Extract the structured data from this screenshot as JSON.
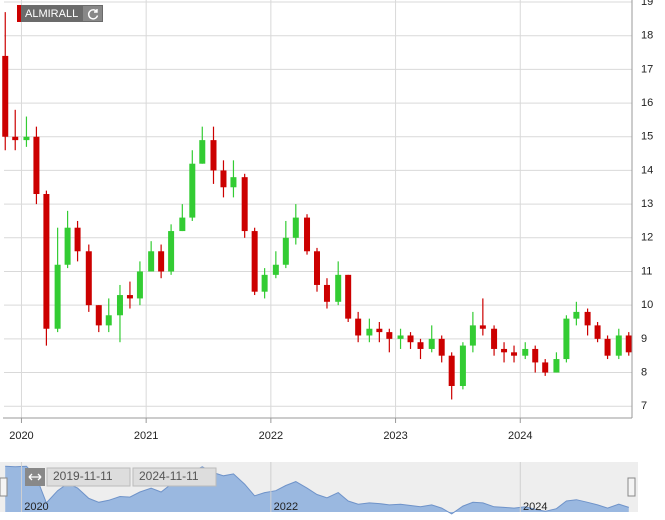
{
  "chart_data": {
    "type": "candlestick",
    "title": "ALMIRALL",
    "x": [
      2019.87,
      2019.95,
      2020.04,
      2020.12,
      2020.2,
      2020.29,
      2020.37,
      2020.45,
      2020.54,
      2020.62,
      2020.7,
      2020.79,
      2020.87,
      2020.95,
      2021.04,
      2021.12,
      2021.2,
      2021.29,
      2021.37,
      2021.45,
      2021.54,
      2021.62,
      2021.7,
      2021.79,
      2021.87,
      2021.95,
      2022.04,
      2022.12,
      2022.2,
      2022.29,
      2022.37,
      2022.45,
      2022.54,
      2022.62,
      2022.7,
      2022.79,
      2022.87,
      2022.95,
      2023.04,
      2023.12,
      2023.2,
      2023.29,
      2023.37,
      2023.45,
      2023.54,
      2023.62,
      2023.7,
      2023.79,
      2023.87,
      2023.95,
      2024.04,
      2024.12,
      2024.2,
      2024.29,
      2024.37,
      2024.45,
      2024.54,
      2024.62,
      2024.7,
      2024.79,
      2024.87
    ],
    "open": [
      17.4,
      15.0,
      14.9,
      15.0,
      13.3,
      9.3,
      11.2,
      12.3,
      11.6,
      10.0,
      9.4,
      9.7,
      10.3,
      10.2,
      11.0,
      11.6,
      11.0,
      12.2,
      12.6,
      14.2,
      14.9,
      14.0,
      13.5,
      13.8,
      12.2,
      10.4,
      10.9,
      11.2,
      12.0,
      12.6,
      11.6,
      10.6,
      10.1,
      10.9,
      9.6,
      9.1,
      9.3,
      9.2,
      9.0,
      9.1,
      8.9,
      8.7,
      9.0,
      8.5,
      7.6,
      8.8,
      9.4,
      9.3,
      8.7,
      8.6,
      8.5,
      8.7,
      8.3,
      8.0,
      8.4,
      9.6,
      9.8,
      9.4,
      9.0,
      8.5,
      9.1
    ],
    "high": [
      18.7,
      15.8,
      15.6,
      15.3,
      13.4,
      12.3,
      12.8,
      12.5,
      11.8,
      10.0,
      10.2,
      10.6,
      10.7,
      11.3,
      11.9,
      11.8,
      12.4,
      13.0,
      14.6,
      15.3,
      15.3,
      14.3,
      14.3,
      13.9,
      12.3,
      11.1,
      11.6,
      12.5,
      13.0,
      12.7,
      11.7,
      10.8,
      11.3,
      10.9,
      9.8,
      9.6,
      9.5,
      9.3,
      9.3,
      9.2,
      9.0,
      9.4,
      9.1,
      8.6,
      8.9,
      9.8,
      10.2,
      9.4,
      8.9,
      8.8,
      8.9,
      8.8,
      8.4,
      8.6,
      9.7,
      10.1,
      9.9,
      9.5,
      9.1,
      9.3,
      9.2
    ],
    "low": [
      14.6,
      14.6,
      14.7,
      13.0,
      8.8,
      9.2,
      11.1,
      11.3,
      9.8,
      9.2,
      9.2,
      8.9,
      9.9,
      10.0,
      11.0,
      10.8,
      10.9,
      12.2,
      12.5,
      14.2,
      13.6,
      13.2,
      13.2,
      12.0,
      10.3,
      10.2,
      10.8,
      11.1,
      11.8,
      11.5,
      10.4,
      9.9,
      10.0,
      9.5,
      8.9,
      8.9,
      8.9,
      8.6,
      8.7,
      8.7,
      8.4,
      8.6,
      8.3,
      7.2,
      7.5,
      8.6,
      9.1,
      8.5,
      8.3,
      8.3,
      8.4,
      8.0,
      7.9,
      8.0,
      8.3,
      9.4,
      9.1,
      8.9,
      8.4,
      8.4,
      8.5
    ],
    "close": [
      15.0,
      14.9,
      15.0,
      13.3,
      9.3,
      11.2,
      12.3,
      11.6,
      10.0,
      9.4,
      9.7,
      10.3,
      10.2,
      11.0,
      11.6,
      11.0,
      12.2,
      12.6,
      14.2,
      14.9,
      14.0,
      13.5,
      13.8,
      12.2,
      10.4,
      10.9,
      11.2,
      12.0,
      12.6,
      11.6,
      10.6,
      10.1,
      10.9,
      9.6,
      9.1,
      9.3,
      9.2,
      9.0,
      9.1,
      8.9,
      8.7,
      9.0,
      8.5,
      7.6,
      8.8,
      9.4,
      9.3,
      8.7,
      8.6,
      8.5,
      8.7,
      8.3,
      8.0,
      8.4,
      9.6,
      9.8,
      9.4,
      9.0,
      8.5,
      9.1,
      8.6
    ],
    "up_color": "#33cc33",
    "down_color": "#cc0000",
    "xlim": [
      2019.86,
      2024.88
    ],
    "xticks": [
      2020,
      2021,
      2022,
      2023,
      2024
    ],
    "ylim": [
      6.65,
      19.06
    ],
    "yticks": [
      7,
      8,
      9,
      10,
      11,
      12,
      13,
      14,
      15,
      16,
      17,
      18,
      19
    ],
    "grid": true,
    "navigator": {
      "xticks": [
        2020,
        2022,
        2024
      ],
      "range_start": "2019-11-11",
      "range_end": "2024-11-11",
      "color": "#9ab8e0"
    }
  }
}
